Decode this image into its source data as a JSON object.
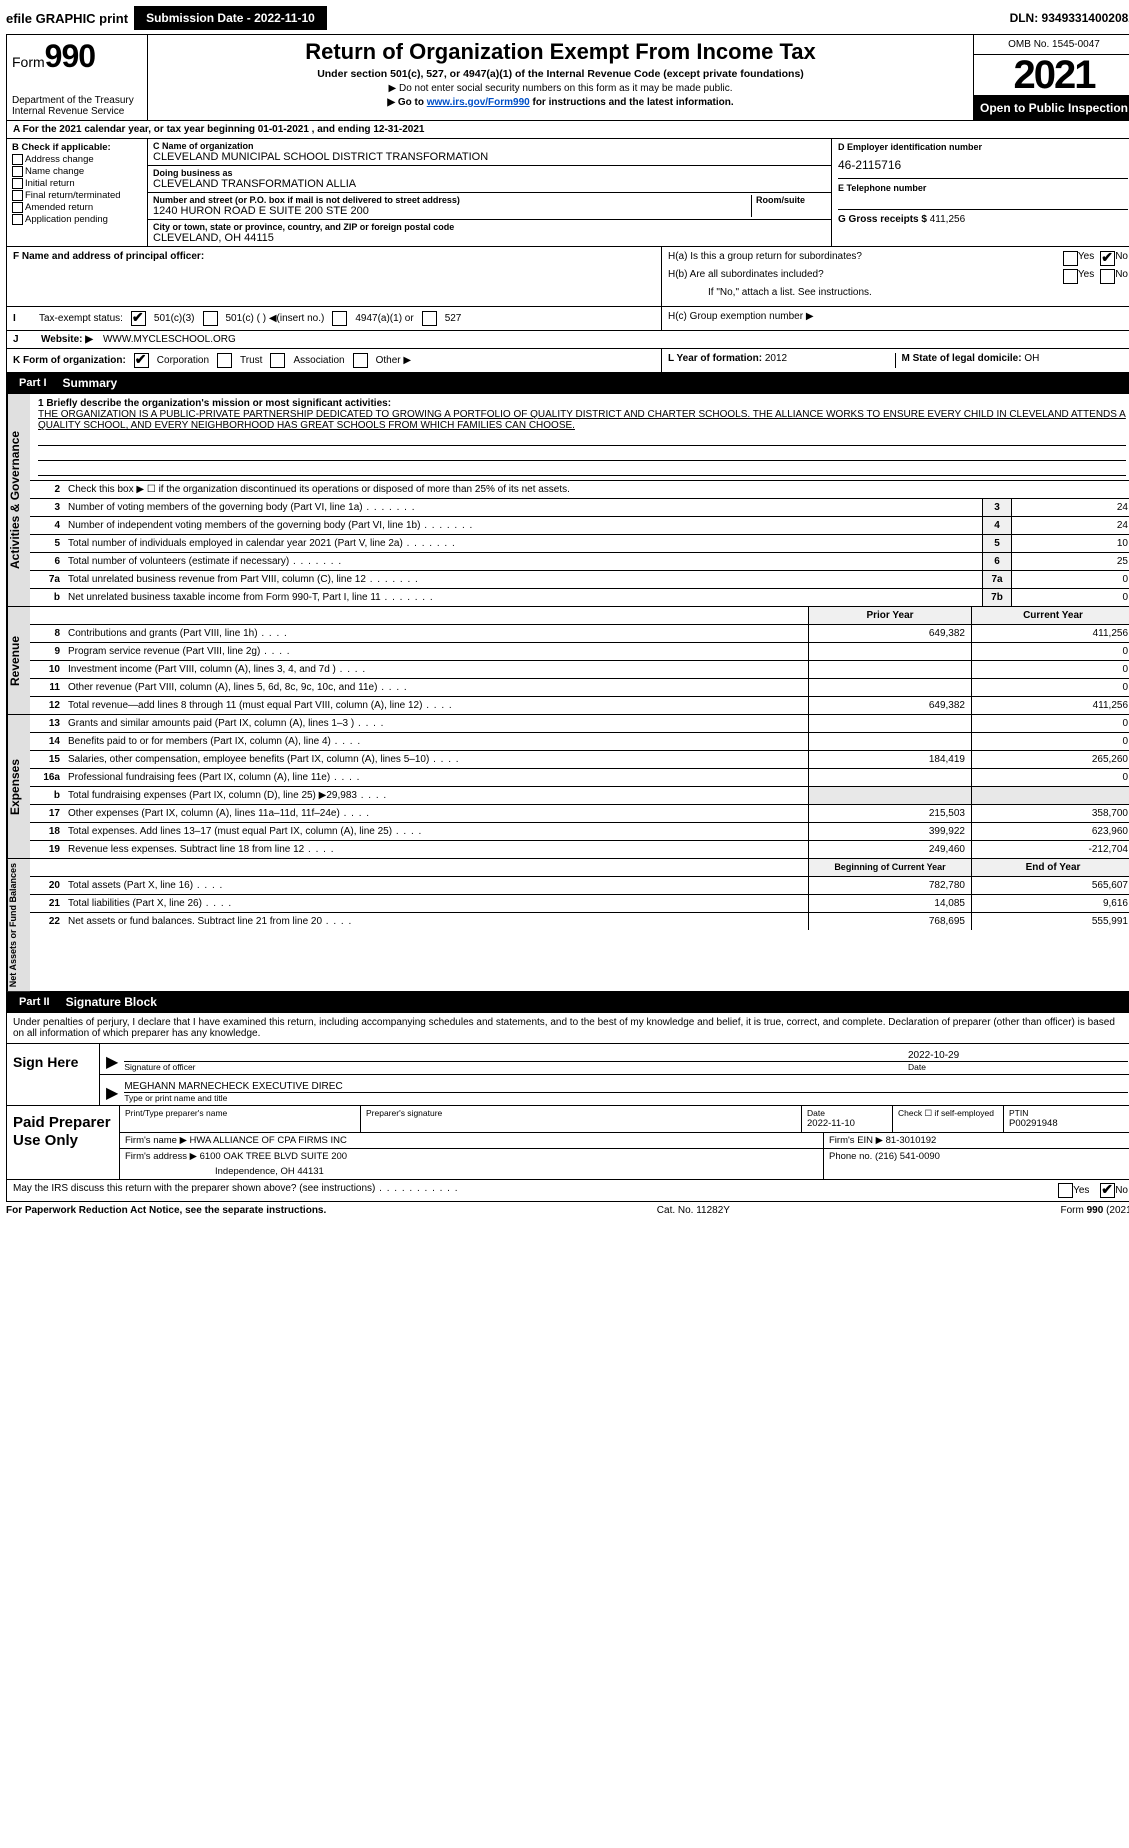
{
  "top": {
    "efile": "efile GRAPHIC print",
    "submission_label": "Submission Date - 2022-11-10",
    "dln": "DLN: 93493314002082"
  },
  "header": {
    "form_prefix": "Form",
    "form_num": "990",
    "title": "Return of Organization Exempt From Income Tax",
    "subtitle": "Under section 501(c), 527, or 4947(a)(1) of the Internal Revenue Code (except private foundations)",
    "note1": "▶ Do not enter social security numbers on this form as it may be made public.",
    "note2_pre": "▶ Go to ",
    "note2_link": "www.irs.gov/Form990",
    "note2_post": " for instructions and the latest information.",
    "dept": "Department of the Treasury\nInternal Revenue Service",
    "omb": "OMB No. 1545-0047",
    "year": "2021",
    "open_public": "Open to Public Inspection"
  },
  "row_a": "A For the 2021 calendar year, or tax year beginning 01-01-2021   , and ending 12-31-2021",
  "box_b": {
    "label": "B Check if applicable:",
    "opts": [
      "Address change",
      "Name change",
      "Initial return",
      "Final return/terminated",
      "Amended return",
      "Application pending"
    ]
  },
  "box_c": {
    "name_lab": "C Name of organization",
    "name": "CLEVELAND MUNICIPAL SCHOOL DISTRICT TRANSFORMATION",
    "dba_lab": "Doing business as",
    "dba": "CLEVELAND TRANSFORMATION ALLIA",
    "addr_lab": "Number and street (or P.O. box if mail is not delivered to street address)",
    "room_lab": "Room/suite",
    "addr": "1240 HURON ROAD E SUITE 200 STE 200",
    "city_lab": "City or town, state or province, country, and ZIP or foreign postal code",
    "city": "Cleveland, OH  44115"
  },
  "box_d": {
    "lab": "D Employer identification number",
    "val": "46-2115716"
  },
  "box_e": {
    "lab": "E Telephone number",
    "val": ""
  },
  "box_g": {
    "lab": "G Gross receipts $",
    "val": "411,256"
  },
  "box_f": "F  Name and address of principal officer:",
  "box_h": {
    "a": "H(a)  Is this a group return for subordinates?",
    "b": "H(b)  Are all subordinates included?",
    "b2": "If \"No,\" attach a list. See instructions.",
    "c": "H(c)  Group exemption number ▶"
  },
  "box_i": {
    "lab": "Tax-exempt status:",
    "o1": "501(c)(3)",
    "o2": "501(c) (  ) ◀(insert no.)",
    "o3": "4947(a)(1) or",
    "o4": "527"
  },
  "box_j": {
    "lab": "Website: ▶",
    "val": " WWW.MYCLESCHOOL.ORG"
  },
  "box_k": {
    "lab": "K Form of organization:",
    "o1": "Corporation",
    "o2": "Trust",
    "o3": "Association",
    "o4": "Other ▶"
  },
  "box_l": {
    "lab": "L Year of formation: ",
    "val": "2012"
  },
  "box_m": {
    "lab": "M State of legal domicile: ",
    "val": "OH"
  },
  "part1": {
    "num": "Part I",
    "title": "Summary"
  },
  "mission": {
    "q": "1 Briefly describe the organization's mission or most significant activities:",
    "text": "THE ORGANIZATION IS A PUBLIC-PRIVATE PARTNERSHIP DEDICATED TO GROWING A PORTFOLIO OF QUALITY DISTRICT AND CHARTER SCHOOLS. THE ALLIANCE WORKS TO ENSURE EVERY CHILD IN CLEVELAND ATTENDS A QUALITY SCHOOL, AND EVERY NEIGHBORHOOD HAS GREAT SCHOOLS FROM WHICH FAMILIES CAN CHOOSE."
  },
  "gov_rows": [
    {
      "n": "2",
      "t": "Check this box ▶ ☐ if the organization discontinued its operations or disposed of more than 25% of its net assets.",
      "box": "",
      "v": ""
    },
    {
      "n": "3",
      "t": "Number of voting members of the governing body (Part VI, line 1a)",
      "box": "3",
      "v": "24"
    },
    {
      "n": "4",
      "t": "Number of independent voting members of the governing body (Part VI, line 1b)",
      "box": "4",
      "v": "24"
    },
    {
      "n": "5",
      "t": "Total number of individuals employed in calendar year 2021 (Part V, line 2a)",
      "box": "5",
      "v": "10"
    },
    {
      "n": "6",
      "t": "Total number of volunteers (estimate if necessary)",
      "box": "6",
      "v": "25"
    },
    {
      "n": "7a",
      "t": "Total unrelated business revenue from Part VIII, column (C), line 12",
      "box": "7a",
      "v": "0"
    },
    {
      "n": "b",
      "t": "Net unrelated business taxable income from Form 990-T, Part I, line 11",
      "box": "7b",
      "v": "0"
    }
  ],
  "col_hdr": {
    "prior": "Prior Year",
    "current": "Current Year"
  },
  "rev_rows": [
    {
      "n": "8",
      "t": "Contributions and grants (Part VIII, line 1h)",
      "p": "649,382",
      "c": "411,256"
    },
    {
      "n": "9",
      "t": "Program service revenue (Part VIII, line 2g)",
      "p": "",
      "c": "0"
    },
    {
      "n": "10",
      "t": "Investment income (Part VIII, column (A), lines 3, 4, and 7d )",
      "p": "",
      "c": "0"
    },
    {
      "n": "11",
      "t": "Other revenue (Part VIII, column (A), lines 5, 6d, 8c, 9c, 10c, and 11e)",
      "p": "",
      "c": "0"
    },
    {
      "n": "12",
      "t": "Total revenue—add lines 8 through 11 (must equal Part VIII, column (A), line 12)",
      "p": "649,382",
      "c": "411,256"
    }
  ],
  "exp_rows": [
    {
      "n": "13",
      "t": "Grants and similar amounts paid (Part IX, column (A), lines 1–3 )",
      "p": "",
      "c": "0"
    },
    {
      "n": "14",
      "t": "Benefits paid to or for members (Part IX, column (A), line 4)",
      "p": "",
      "c": "0"
    },
    {
      "n": "15",
      "t": "Salaries, other compensation, employee benefits (Part IX, column (A), lines 5–10)",
      "p": "184,419",
      "c": "265,260"
    },
    {
      "n": "16a",
      "t": "Professional fundraising fees (Part IX, column (A), line 11e)",
      "p": "",
      "c": "0"
    },
    {
      "n": "b",
      "t": "Total fundraising expenses (Part IX, column (D), line 25) ▶29,983",
      "p": "grey",
      "c": "grey"
    },
    {
      "n": "17",
      "t": "Other expenses (Part IX, column (A), lines 11a–11d, 11f–24e)",
      "p": "215,503",
      "c": "358,700"
    },
    {
      "n": "18",
      "t": "Total expenses. Add lines 13–17 (must equal Part IX, column (A), line 25)",
      "p": "399,922",
      "c": "623,960"
    },
    {
      "n": "19",
      "t": "Revenue less expenses. Subtract line 18 from line 12",
      "p": "249,460",
      "c": "-212,704"
    }
  ],
  "net_hdr": {
    "begin": "Beginning of Current Year",
    "end": "End of Year"
  },
  "net_rows": [
    {
      "n": "20",
      "t": "Total assets (Part X, line 16)",
      "p": "782,780",
      "c": "565,607"
    },
    {
      "n": "21",
      "t": "Total liabilities (Part X, line 26)",
      "p": "14,085",
      "c": "9,616"
    },
    {
      "n": "22",
      "t": "Net assets or fund balances. Subtract line 21 from line 20",
      "p": "768,695",
      "c": "555,991"
    }
  ],
  "part2": {
    "num": "Part II",
    "title": "Signature Block"
  },
  "sig_disclaim": "Under penalties of perjury, I declare that I have examined this return, including accompanying schedules and statements, and to the best of my knowledge and belief, it is true, correct, and complete. Declaration of preparer (other than officer) is based on all information of which preparer has any knowledge.",
  "sign": {
    "here": "Sign Here",
    "sig_lab": "Signature of officer",
    "date_lab": "Date",
    "date": "2022-10-29",
    "name": "MEGHANN MARNECHECK EXECUTIVE DIREC",
    "name_lab": "Type or print name and title"
  },
  "prep": {
    "label": "Paid Preparer Use Only",
    "h1": "Print/Type preparer's name",
    "h2": "Preparer's signature",
    "h3": "Date",
    "h3v": "2022-11-10",
    "h4": "Check ☐ if self-employed",
    "h5": "PTIN",
    "h5v": "P00291948",
    "firm_lab": "Firm's name   ▶",
    "firm": "HWA ALLIANCE OF CPA FIRMS INC",
    "ein_lab": "Firm's EIN ▶",
    "ein": "81-3010192",
    "addr_lab": "Firm's address ▶",
    "addr1": "6100 OAK TREE BLVD SUITE 200",
    "addr2": "Independence, OH  44131",
    "phone_lab": "Phone no.",
    "phone": "(216) 541-0090"
  },
  "discuss": "May the IRS discuss this return with the preparer shown above? (see instructions)",
  "foot": {
    "l": "For Paperwork Reduction Act Notice, see the separate instructions.",
    "c": "Cat. No. 11282Y",
    "r": "Form 990 (2021)"
  },
  "vtabs": {
    "gov": "Activities & Governance",
    "rev": "Revenue",
    "exp": "Expenses",
    "net": "Net Assets or Fund Balances"
  }
}
